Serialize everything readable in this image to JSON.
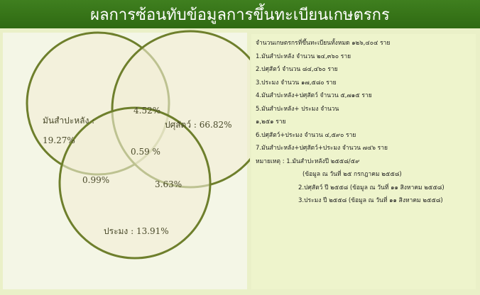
{
  "header": {
    "title": "ผลการซ้อนทับข้อมูลการขึ้นทะเบียนเกษตรกร"
  },
  "venn": {
    "regions": [
      {
        "label": "มันสำปะหลัง :"
      },
      {
        "label": "19.27%"
      },
      {
        "label": "4.52%"
      },
      {
        "label": "ปศุสัตว์ : 66.82%"
      },
      {
        "label": "0.59 %"
      },
      {
        "label": "0.99%"
      },
      {
        "label": "3.63%"
      },
      {
        "label": "ประมง : 13.91%"
      }
    ]
  },
  "notes": {
    "lines": [
      "จำนวนเกษตรกรที่ขึ้นทะเบียนทั้งหมด ๑๒๖,๔๐๔ ราย",
      "1.มันสำปะหลัง จำนวน ๒๔,๓๖๐ ราย",
      "2.ปศุสัตว์ จำนวน ๘๔,๔๖๐ ราย",
      "3.ประมง จำนวน ๑๗,๕๘๐ ราย",
      "4.มันสำปะหลัง+ปศุสัตว์ จำนวน ๕,๗๑๕ ราย",
      "5.มันสำปะหลัง+ ประมง จำนวน",
      "๑,๒๕๑ ราย",
      "6.ปศุสัตว์+ประมง จำนวน ๔,๕๙๐ ราย",
      "7.มันสำปะหลัง+ปศุสัตว์+ประมง จำนวน ๗๔๖ ราย",
      "หมายเหตุ : 1.มันสำปะหลังปี ๒๕๕๘/๕๙",
      "(ข้อมูล ณ วันที่ ๒๕ กรกฎาคม ๒๕๕๘)",
      "2.ปศุสัตว์ ปี ๒๕๕๘ (ข้อมูล ณ วันที่ ๑๑ สิงหาคม ๒๕๕๘)",
      "3.ประมง ปี ๒๕๕๘ (ข้อมูล ณ วันที่ ๑๑ สิงหาคม ๒๕๕๘)"
    ]
  }
}
